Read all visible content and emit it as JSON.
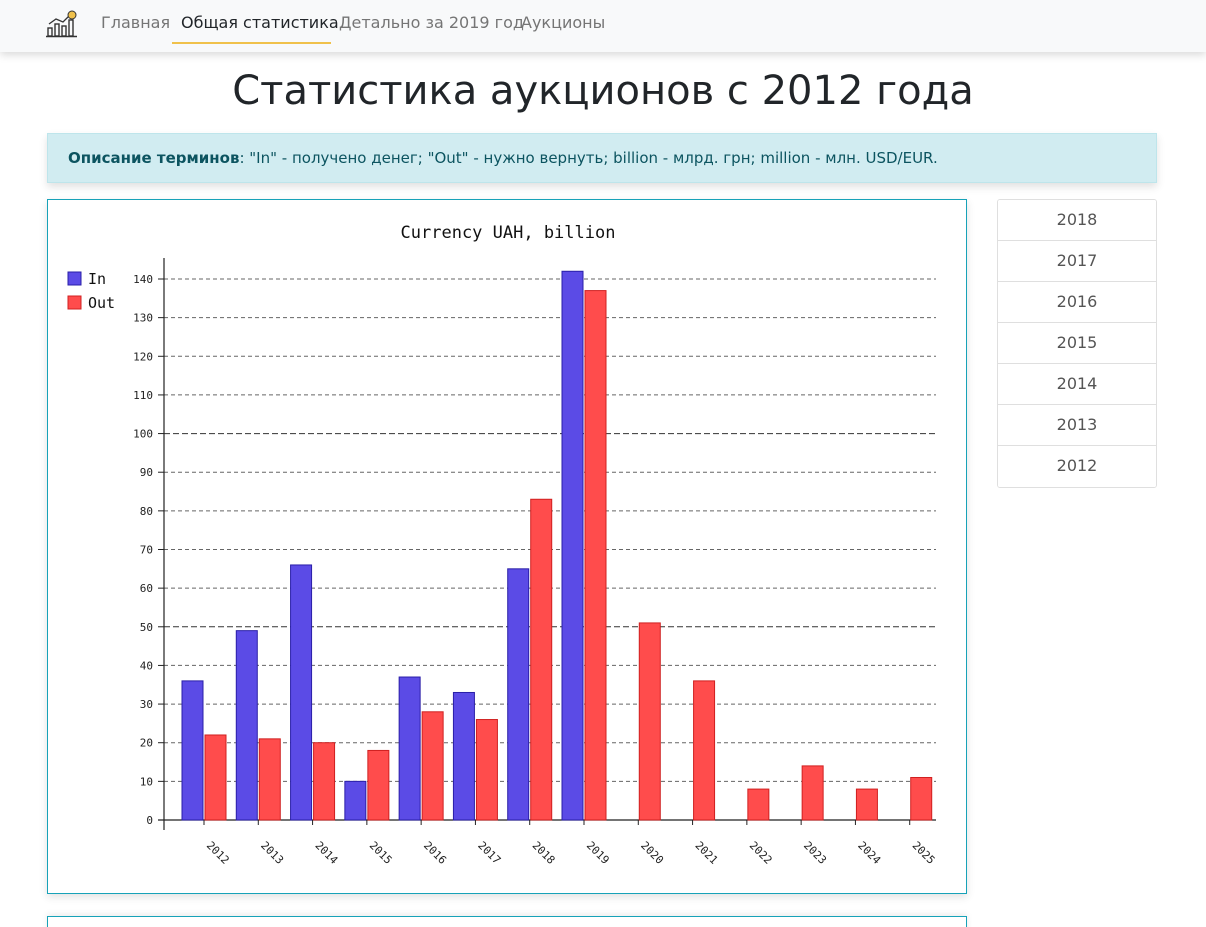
{
  "nav": {
    "items": [
      {
        "label": "Главная",
        "active": false
      },
      {
        "label": "Общая статистика",
        "active": true
      },
      {
        "label": "Детально за 2019 год",
        "active": false
      },
      {
        "label": "Аукционы",
        "active": false
      }
    ]
  },
  "page": {
    "title": "Статистика аукционов с 2012 года"
  },
  "alert": {
    "label": "Описание терминов",
    "text": ": \"In\" - получено денег; \"Out\" - нужно вернуть; billion - млрд. грн; million - млн. USD/EUR."
  },
  "sidebar": {
    "years": [
      "2018",
      "2017",
      "2016",
      "2015",
      "2014",
      "2013",
      "2012"
    ]
  },
  "chart_data": {
    "type": "bar",
    "title": "Currency UAH, billion",
    "categories": [
      "2012",
      "2013",
      "2014",
      "2015",
      "2016",
      "2017",
      "2018",
      "2019",
      "2020",
      "2021",
      "2022",
      "2023",
      "2024",
      "2025"
    ],
    "series": [
      {
        "name": "In",
        "color": "#5b4be6",
        "values": [
          36,
          49,
          66,
          10,
          37,
          33,
          65,
          142,
          0,
          0,
          0,
          0,
          0,
          0
        ]
      },
      {
        "name": "Out",
        "color": "#ff4c4c",
        "values": [
          22,
          21,
          20,
          18,
          28,
          26,
          83,
          137,
          51,
          36,
          8,
          14,
          8,
          11
        ]
      }
    ],
    "ylim": [
      0,
      140
    ],
    "yticks": [
      0,
      10,
      20,
      30,
      40,
      50,
      60,
      70,
      80,
      90,
      100,
      110,
      120,
      130,
      140
    ],
    "grid": true,
    "legend": "top-left"
  }
}
